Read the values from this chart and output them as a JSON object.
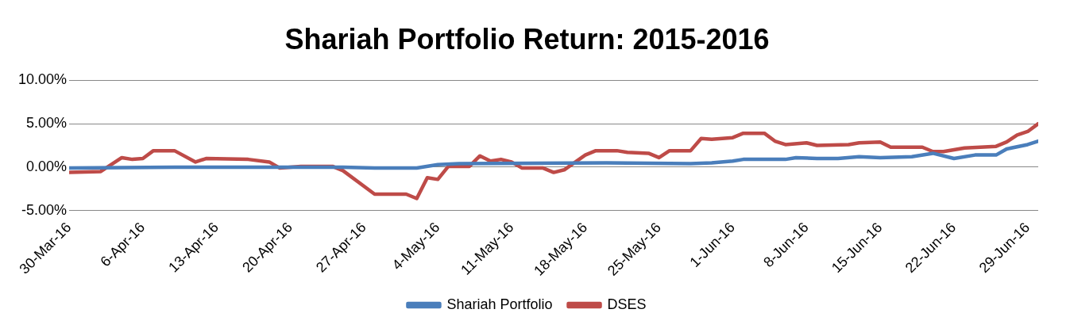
{
  "chart_data": {
    "type": "line",
    "title": "Shariah Portfolio Return: 2015-2016",
    "x": [
      "2016-03-30",
      "2016-04-02",
      "2016-04-04",
      "2016-04-05",
      "2016-04-06",
      "2016-04-07",
      "2016-04-09",
      "2016-04-11",
      "2016-04-12",
      "2016-04-16",
      "2016-04-18",
      "2016-04-19",
      "2016-04-21",
      "2016-04-24",
      "2016-04-25",
      "2016-04-28",
      "2016-05-01",
      "2016-05-02",
      "2016-05-03",
      "2016-05-04",
      "2016-05-05",
      "2016-05-07",
      "2016-05-08",
      "2016-05-09",
      "2016-05-10",
      "2016-05-11",
      "2016-05-12",
      "2016-05-14",
      "2016-05-15",
      "2016-05-16",
      "2016-05-18",
      "2016-05-19",
      "2016-05-21",
      "2016-05-22",
      "2016-05-24",
      "2016-05-25",
      "2016-05-26",
      "2016-05-28",
      "2016-05-29",
      "2016-05-30",
      "2016-06-01",
      "2016-06-02",
      "2016-06-04",
      "2016-06-05",
      "2016-06-06",
      "2016-06-08",
      "2016-06-09",
      "2016-06-12",
      "2016-06-13",
      "2016-06-15",
      "2016-06-16",
      "2016-06-19",
      "2016-06-20",
      "2016-06-21",
      "2016-06-23",
      "2016-06-26",
      "2016-06-27",
      "2016-06-28",
      "2016-06-29",
      "2016-06-30"
    ],
    "series": [
      {
        "name": "Shariah Portfolio",
        "color": "#4a7ebb",
        "x": [
          "2016-03-30",
          "2016-04-09",
          "2016-04-25",
          "2016-04-28",
          "2016-05-02",
          "2016-05-04",
          "2016-05-06",
          "2016-05-20",
          "2016-05-28",
          "2016-05-30",
          "2016-06-01",
          "2016-06-02",
          "2016-06-06",
          "2016-06-07",
          "2016-06-09",
          "2016-06-11",
          "2016-06-13",
          "2016-06-15",
          "2016-06-18",
          "2016-06-20",
          "2016-06-22",
          "2016-06-24",
          "2016-06-26",
          "2016-06-27",
          "2016-06-29",
          "2016-06-30"
        ],
        "values": [
          -0.1,
          0.0,
          0.0,
          -0.1,
          -0.1,
          0.3,
          0.4,
          0.5,
          0.4,
          0.5,
          0.7,
          0.9,
          0.9,
          1.1,
          1.0,
          1.0,
          1.2,
          1.1,
          1.2,
          1.6,
          1.0,
          1.4,
          1.4,
          2.1,
          2.6,
          3.0
        ]
      },
      {
        "name": "DSES",
        "color": "#be4b48",
        "values": [
          -0.6,
          -0.5,
          1.1,
          0.9,
          1.0,
          1.9,
          1.9,
          0.6,
          1.0,
          0.9,
          0.6,
          -0.1,
          0.1,
          0.1,
          -0.4,
          -3.1,
          -3.1,
          -3.6,
          -1.2,
          -1.4,
          0.1,
          0.1,
          1.3,
          0.7,
          0.9,
          0.6,
          -0.1,
          -0.1,
          -0.6,
          -0.3,
          1.4,
          1.9,
          1.9,
          1.7,
          1.6,
          1.1,
          1.9,
          1.9,
          3.3,
          3.2,
          3.4,
          3.9,
          3.9,
          3.0,
          2.6,
          2.8,
          2.5,
          2.6,
          2.8,
          2.9,
          2.3,
          2.3,
          1.8,
          1.8,
          2.2,
          2.4,
          2.9,
          3.7,
          4.1,
          5.0
        ]
      }
    ],
    "xlim": [
      "2016-03-30",
      "2016-06-30"
    ],
    "xticks": [
      {
        "value": "2016-03-30",
        "label": "30-Mar-16"
      },
      {
        "value": "2016-04-06",
        "label": "6-Apr-16"
      },
      {
        "value": "2016-04-13",
        "label": "13-Apr-16"
      },
      {
        "value": "2016-04-20",
        "label": "20-Apr-16"
      },
      {
        "value": "2016-04-27",
        "label": "27-Apr-16"
      },
      {
        "value": "2016-05-04",
        "label": "4-May-16"
      },
      {
        "value": "2016-05-11",
        "label": "11-May-16"
      },
      {
        "value": "2016-05-18",
        "label": "18-May-16"
      },
      {
        "value": "2016-05-25",
        "label": "25-May-16"
      },
      {
        "value": "2016-06-01",
        "label": "1-Jun-16"
      },
      {
        "value": "2016-06-08",
        "label": "8-Jun-16"
      },
      {
        "value": "2016-06-15",
        "label": "15-Jun-16"
      },
      {
        "value": "2016-06-22",
        "label": "22-Jun-16"
      },
      {
        "value": "2016-06-29",
        "label": "29-Jun-16"
      }
    ],
    "ylim": [
      -5,
      10
    ],
    "yticks": [
      {
        "value": -5,
        "label": "-5.00%"
      },
      {
        "value": 0,
        "label": "0.00%"
      },
      {
        "value": 5,
        "label": "5.00%"
      },
      {
        "value": 10,
        "label": "10.00%"
      }
    ],
    "grid": "y",
    "legend": "bottom",
    "marker": "none",
    "line_style": "solid"
  }
}
